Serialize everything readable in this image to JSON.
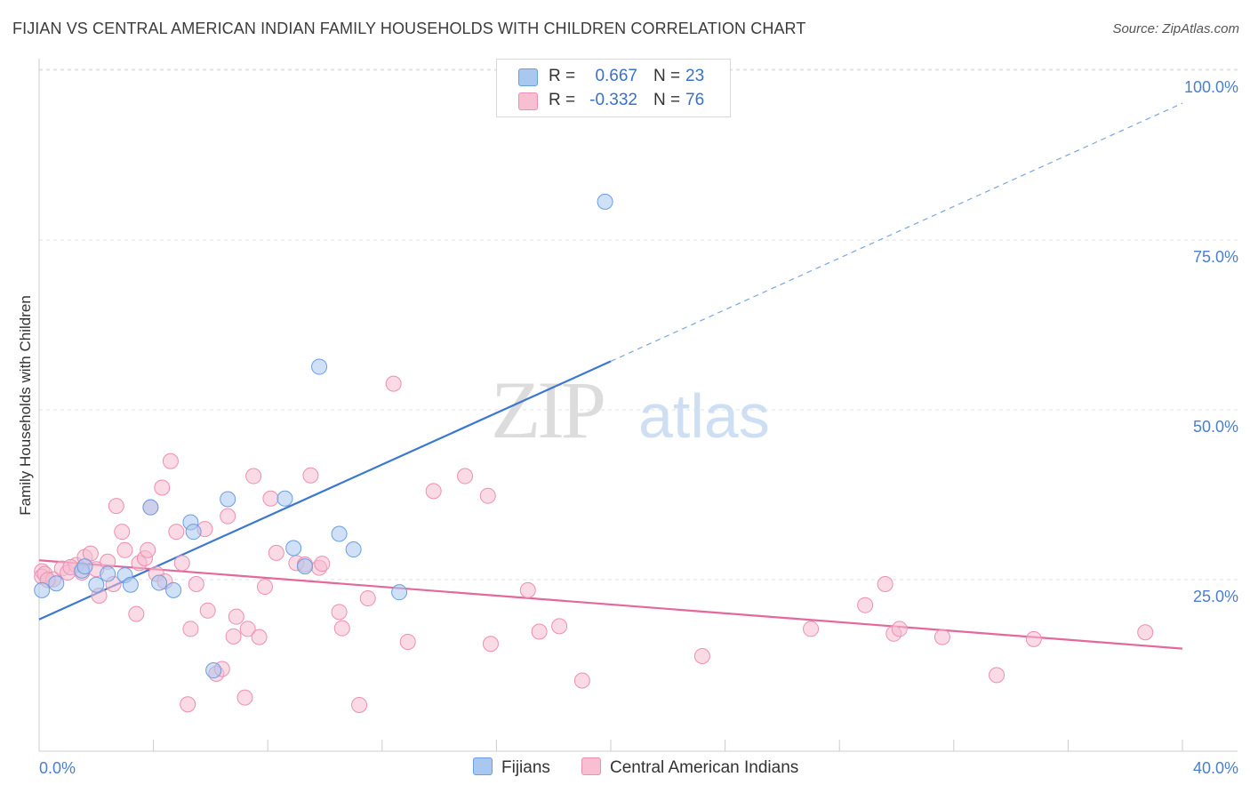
{
  "title": "FIJIAN VS CENTRAL AMERICAN INDIAN FAMILY HOUSEHOLDS WITH CHILDREN CORRELATION CHART",
  "source": "Source: ZipAtlas.com",
  "watermark": {
    "zip": "ZIP",
    "atlas": "atlas"
  },
  "legend": {
    "rows": [
      {
        "r_label": "R =",
        "r_value": "0.667",
        "n_label": "N =",
        "n_value": "23",
        "color": "#a9c8f0",
        "border": "#6a9ee0"
      },
      {
        "r_label": "R =",
        "r_value": "-0.332",
        "n_label": "N =",
        "n_value": "76",
        "color": "#f8bfd2",
        "border": "#ec8fb0"
      }
    ]
  },
  "bottom_legend": {
    "fijians": "Fijians",
    "central": "Central American Indians"
  },
  "colors": {
    "blue": "#3b78d0",
    "blue_fill": "#a9c8f0",
    "pink": "#e4689a",
    "pink_fill": "#f6bcd0",
    "tick": "#4a7fd0"
  },
  "chart_data": {
    "type": "scatter",
    "xlabel": "",
    "ylabel": "Family Households with Children",
    "xlim": [
      0,
      40
    ],
    "ylim": [
      0,
      100
    ],
    "x_tick_labels": [
      "0.0%",
      "40.0%"
    ],
    "y_ticks": [
      {
        "value": 100,
        "label": "100.0%"
      },
      {
        "value": 75,
        "label": "75.0%"
      },
      {
        "value": 50,
        "label": "50.0%"
      },
      {
        "value": 25,
        "label": "25.0%"
      }
    ],
    "grid": "horizontal dashed",
    "series": [
      {
        "name": "Fijians",
        "color": "#3b78d0",
        "trend": {
          "x0": 0,
          "y0": 21.5,
          "x1": 20,
          "y1": 59.5,
          "dashed_to_x": 40,
          "dashed_to_y": 97.5
        },
        "points": [
          [
            0.1,
            25.8
          ],
          [
            0.6,
            26.8
          ],
          [
            1.5,
            28.7
          ],
          [
            1.6,
            29.3
          ],
          [
            2.0,
            26.6
          ],
          [
            2.4,
            28.2
          ],
          [
            3.0,
            28.0
          ],
          [
            3.2,
            26.6
          ],
          [
            3.9,
            38.0
          ],
          [
            4.2,
            26.9
          ],
          [
            4.7,
            25.8
          ],
          [
            5.3,
            35.8
          ],
          [
            5.4,
            34.4
          ],
          [
            6.1,
            14.0
          ],
          [
            6.6,
            39.2
          ],
          [
            8.6,
            39.3
          ],
          [
            8.9,
            32.0
          ],
          [
            9.3,
            29.3
          ],
          [
            9.8,
            58.7
          ],
          [
            10.5,
            34.1
          ],
          [
            11.0,
            31.8
          ],
          [
            12.6,
            25.5
          ],
          [
            19.8,
            83.0
          ]
        ]
      },
      {
        "name": "Central American Indians",
        "color": "#e4689a",
        "trend": {
          "x0": 0,
          "y0": 30.2,
          "x1": 40,
          "y1": 17.2
        },
        "points": [
          [
            0.1,
            28.6
          ],
          [
            0.1,
            27.8
          ],
          [
            0.2,
            28.2
          ],
          [
            0.5,
            27.4
          ],
          [
            0.8,
            29.0
          ],
          [
            1.0,
            28.4
          ],
          [
            1.3,
            29.5
          ],
          [
            1.5,
            28.4
          ],
          [
            1.6,
            30.7
          ],
          [
            1.8,
            31.2
          ],
          [
            2.0,
            28.9
          ],
          [
            2.1,
            25.0
          ],
          [
            2.4,
            30.0
          ],
          [
            2.6,
            26.7
          ],
          [
            2.7,
            38.2
          ],
          [
            2.9,
            34.4
          ],
          [
            3.0,
            31.7
          ],
          [
            3.4,
            22.3
          ],
          [
            3.5,
            29.8
          ],
          [
            3.7,
            30.5
          ],
          [
            3.8,
            31.7
          ],
          [
            3.9,
            38.0
          ],
          [
            4.1,
            28.2
          ],
          [
            4.3,
            40.9
          ],
          [
            4.4,
            27.1
          ],
          [
            4.6,
            44.8
          ],
          [
            4.8,
            34.4
          ],
          [
            5.0,
            29.8
          ],
          [
            5.2,
            9.0
          ],
          [
            5.3,
            20.1
          ],
          [
            5.5,
            26.7
          ],
          [
            5.8,
            34.8
          ],
          [
            5.9,
            22.8
          ],
          [
            6.2,
            13.5
          ],
          [
            6.4,
            14.2
          ],
          [
            6.6,
            36.7
          ],
          [
            6.8,
            19.0
          ],
          [
            6.9,
            21.9
          ],
          [
            7.2,
            10.0
          ],
          [
            7.3,
            20.1
          ],
          [
            7.5,
            42.6
          ],
          [
            7.7,
            18.9
          ],
          [
            7.9,
            26.3
          ],
          [
            8.1,
            39.3
          ],
          [
            8.3,
            31.3
          ],
          [
            9.0,
            29.8
          ],
          [
            9.3,
            29.6
          ],
          [
            9.5,
            42.7
          ],
          [
            9.8,
            29.1
          ],
          [
            9.9,
            29.7
          ],
          [
            10.5,
            22.6
          ],
          [
            10.6,
            20.2
          ],
          [
            11.2,
            8.9
          ],
          [
            11.5,
            24.6
          ],
          [
            12.4,
            56.2
          ],
          [
            12.9,
            18.2
          ],
          [
            13.8,
            40.4
          ],
          [
            14.9,
            42.6
          ],
          [
            15.7,
            39.7
          ],
          [
            15.8,
            17.9
          ],
          [
            17.1,
            25.8
          ],
          [
            17.5,
            19.7
          ],
          [
            18.2,
            20.5
          ],
          [
            19.0,
            12.5
          ],
          [
            23.2,
            16.1
          ],
          [
            27.0,
            20.1
          ],
          [
            28.9,
            23.6
          ],
          [
            29.6,
            26.7
          ],
          [
            29.9,
            19.4
          ],
          [
            30.1,
            20.1
          ],
          [
            31.6,
            18.9
          ],
          [
            33.5,
            13.3
          ],
          [
            34.8,
            18.6
          ],
          [
            38.7,
            19.6
          ],
          [
            0.3,
            27.3
          ],
          [
            1.1,
            29.2
          ]
        ]
      }
    ]
  }
}
